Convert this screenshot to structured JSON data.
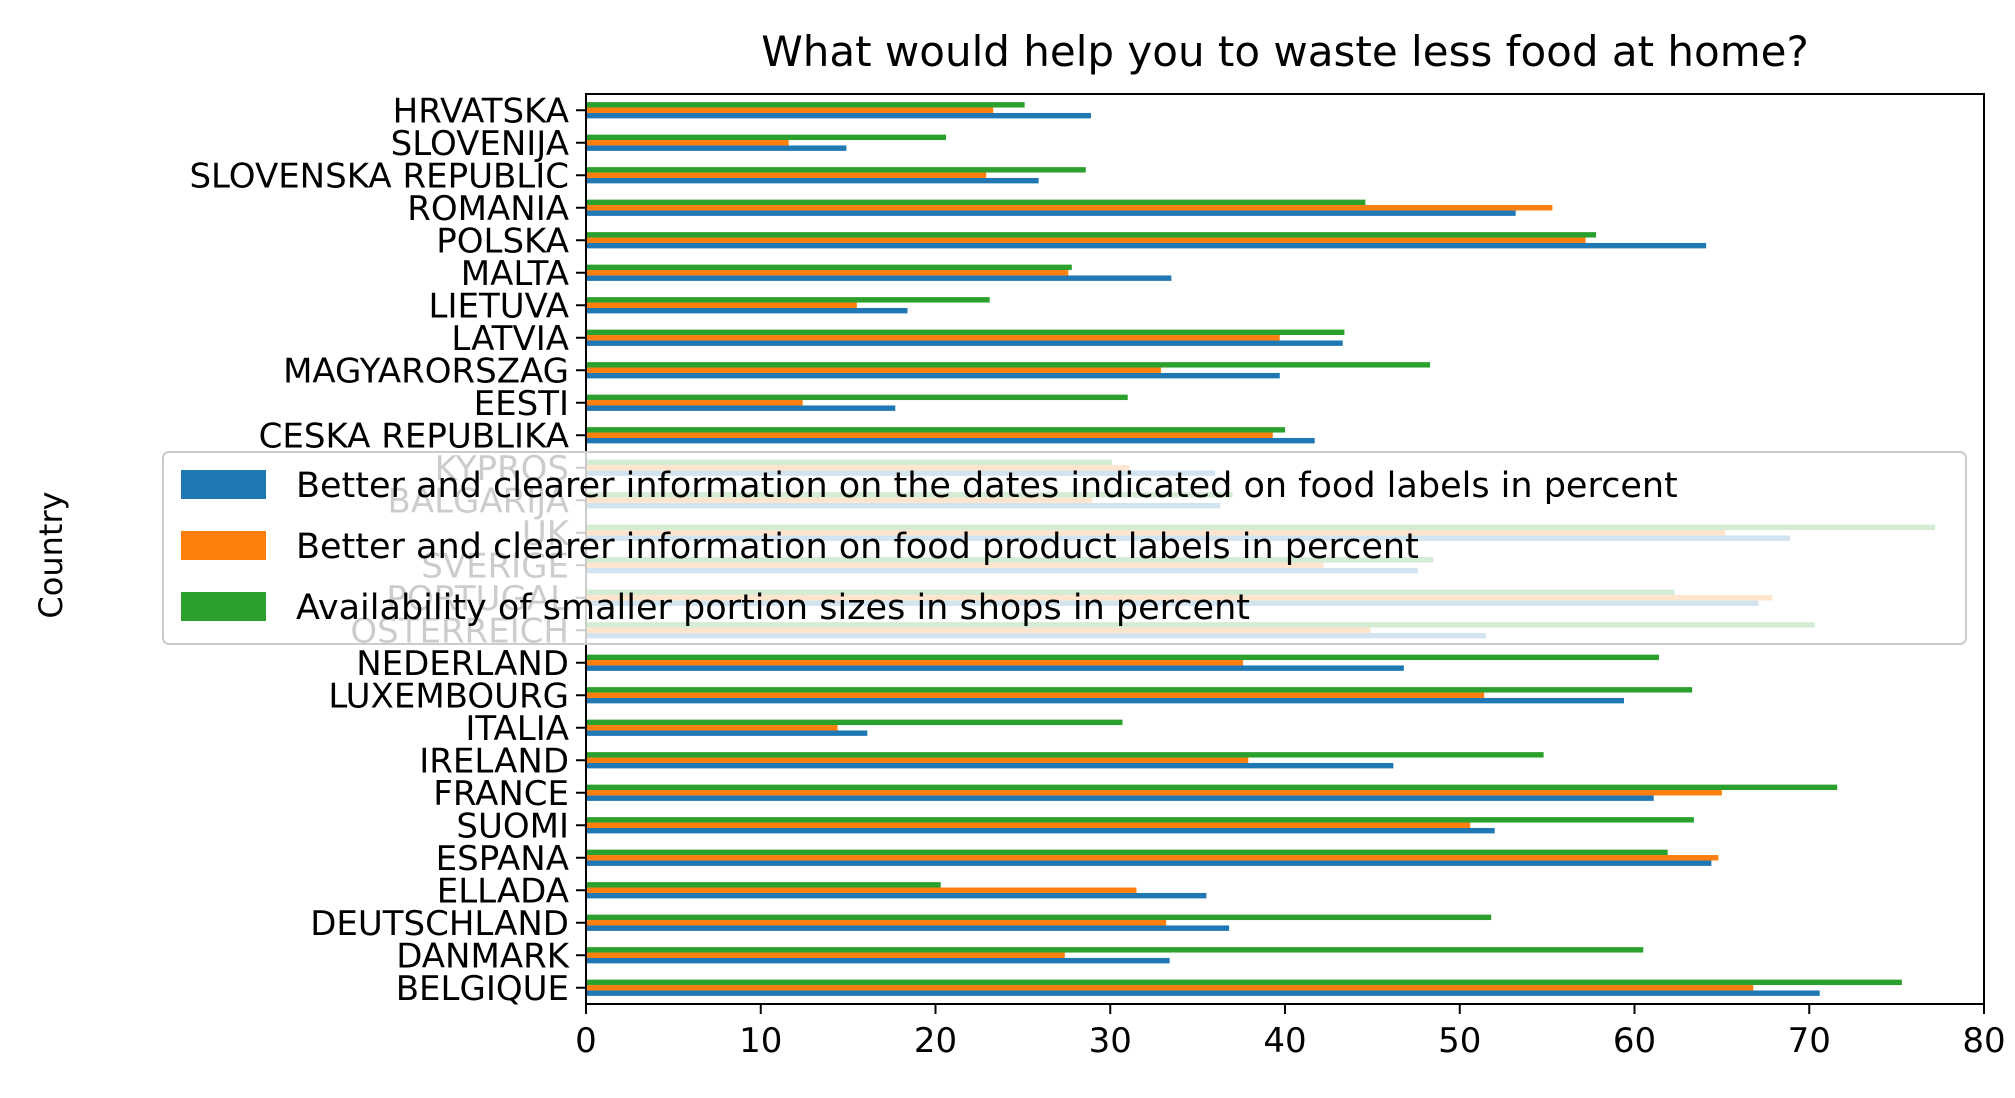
{
  "chart_data": {
    "type": "bar",
    "orientation": "horizontal",
    "title": "What would help you to waste less food at home?",
    "xlabel": "",
    "ylabel": "Country",
    "xlim": [
      0,
      80
    ],
    "xticks": [
      0,
      10,
      20,
      30,
      40,
      50,
      60,
      70,
      80
    ],
    "grid": false,
    "legend_position": "center",
    "categories": [
      "BELGIQUE",
      "DANMARK",
      "DEUTSCHLAND",
      "ELLADA",
      "ESPANA",
      "SUOMI",
      "FRANCE",
      "IRELAND",
      "ITALIA",
      "LUXEMBOURG",
      "NEDERLAND",
      "OSTERREICH",
      "PORTUGAL",
      "SVERIGE",
      "UK",
      "BALGARIJA",
      "KYPROS",
      "CESKA REPUBLIKA",
      "EESTI",
      "MAGYARORSZAG",
      "LATVIA",
      "LIETUVA",
      "MALTA",
      "POLSKA",
      "ROMANIA",
      "SLOVENSKA REPUBLIC",
      "SLOVENIJA",
      "HRVATSKA"
    ],
    "series": [
      {
        "name": "Better and clearer information on the dates indicated on food labels in percent",
        "color": "#1f77b4",
        "values": [
          70.6,
          33.4,
          36.8,
          35.5,
          64.4,
          52.0,
          61.1,
          46.2,
          16.1,
          59.4,
          46.8,
          51.5,
          67.1,
          47.6,
          68.9,
          36.3,
          36.0,
          41.7,
          17.7,
          39.7,
          43.3,
          18.4,
          33.5,
          64.1,
          53.2,
          25.9,
          14.9,
          28.9
        ]
      },
      {
        "name": "Better and clearer information on food product labels in percent",
        "color": "#ff7f0e",
        "values": [
          66.8,
          27.4,
          33.2,
          31.5,
          64.8,
          50.6,
          65.0,
          37.9,
          14.4,
          51.4,
          37.6,
          44.9,
          67.9,
          42.2,
          65.2,
          29.0,
          31.1,
          39.3,
          12.4,
          32.9,
          39.7,
          15.5,
          27.6,
          57.2,
          55.3,
          22.9,
          11.6,
          23.3
        ]
      },
      {
        "name": "Availability of smaller portion sizes in shops in percent",
        "color": "#2ca02c",
        "values": [
          75.3,
          60.5,
          51.8,
          20.3,
          61.9,
          63.4,
          71.6,
          54.8,
          30.7,
          63.3,
          61.4,
          70.3,
          62.3,
          48.5,
          77.2,
          37.0,
          30.1,
          40.0,
          31.0,
          48.3,
          43.4,
          23.1,
          27.8,
          57.8,
          44.6,
          28.6,
          20.6,
          25.1
        ]
      }
    ]
  }
}
